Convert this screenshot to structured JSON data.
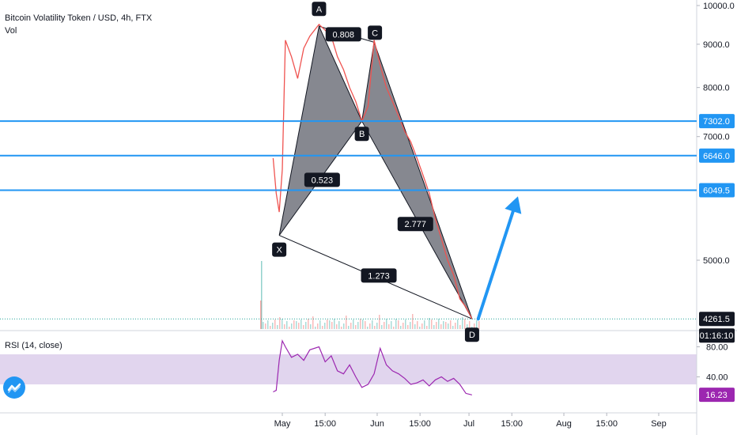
{
  "header": {
    "title": "Bitcoin Volatility Token / USD, 4h, FTX",
    "volume_label": "Vol",
    "rsi_label": "RSI (14, close)"
  },
  "chart_data": {
    "type": "line",
    "symbol": "Bitcoin Volatility Token / USD",
    "interval": "4h",
    "exchange": "FTX",
    "price_axis": {
      "min": 3800,
      "max": 10000,
      "ticks": [
        "10000.0",
        "9000.0",
        "8000.0",
        "7000.0",
        "5000.0"
      ]
    },
    "time_axis": {
      "ticks": [
        "May",
        "15:00",
        "Jun",
        "15:00",
        "Jul",
        "15:00",
        "Aug",
        "15:00",
        "Sep"
      ]
    },
    "price_series": {
      "name": "",
      "x": [
        "Apr 28",
        "Apr 29",
        "Apr 30",
        "May 1",
        "May 2",
        "May 4",
        "May 6",
        "May 8",
        "May 10",
        "May 13",
        "May 15",
        "May 17",
        "May 19",
        "May 21",
        "May 23",
        "May 25",
        "May 27",
        "May 29",
        "May 31",
        "Jun 2",
        "Jun 4",
        "Jun 6",
        "Jun 8",
        "Jun 10",
        "Jun 12",
        "Jun 14",
        "Jun 16",
        "Jun 18",
        "Jun 20",
        "Jun 22",
        "Jun 24",
        "Jun 26",
        "Jun 28",
        "Jun 30",
        "Jul 2"
      ],
      "values": [
        6600,
        6000,
        5700,
        6400,
        9100,
        8700,
        8200,
        8900,
        9200,
        9500,
        9350,
        9200,
        8700,
        8400,
        8000,
        7700,
        7300,
        7600,
        9100,
        8500,
        8000,
        7700,
        7400,
        7100,
        6900,
        6600,
        6300,
        6000,
        5600,
        5300,
        5000,
        4800,
        4500,
        4400,
        4262
      ]
    },
    "rsi_series": {
      "name": "",
      "x": [
        "Apr 28",
        "Apr 29",
        "Apr 30",
        "May 1",
        "May 2",
        "May 4",
        "May 6",
        "May 8",
        "May 10",
        "May 13",
        "May 15",
        "May 17",
        "May 19",
        "May 21",
        "May 23",
        "May 25",
        "May 27",
        "May 29",
        "May 31",
        "Jun 2",
        "Jun 4",
        "Jun 6",
        "Jun 8",
        "Jun 10",
        "Jun 12",
        "Jun 14",
        "Jun 16",
        "Jun 18",
        "Jun 20",
        "Jun 22",
        "Jun 24",
        "Jun 26",
        "Jun 28",
        "Jun 30",
        "Jul 2"
      ],
      "values": [
        20,
        22,
        62,
        88,
        80,
        66,
        70,
        62,
        76,
        80,
        60,
        68,
        48,
        44,
        56,
        40,
        26,
        30,
        44,
        78,
        56,
        48,
        44,
        38,
        30,
        32,
        36,
        28,
        36,
        40,
        34,
        38,
        30,
        18,
        16
      ]
    },
    "rsi_axis": {
      "min": 0,
      "max": 100,
      "ticks": [
        "80.00",
        "40.00"
      ],
      "band": [
        30,
        70
      ]
    },
    "horizontal_levels": [
      {
        "label": "7302.0",
        "value": 7302
      },
      {
        "label": "6646.0",
        "value": 6646
      },
      {
        "label": "6049.5",
        "value": 6049.5
      }
    ],
    "current_price": {
      "label": "4261.5",
      "value": 4261.5
    },
    "countdown": "01:16:10",
    "rsi_current": {
      "label": "16.23",
      "value": 16.23
    },
    "pattern": {
      "points": [
        {
          "label": "X",
          "date": "Apr 30",
          "price": 5350
        },
        {
          "label": "A",
          "date": "May 13",
          "price": 9450
        },
        {
          "label": "B",
          "date": "May 27",
          "price": 7300
        },
        {
          "label": "C",
          "date": "May 31",
          "price": 9050
        },
        {
          "label": "D",
          "date": "Jul 2",
          "price": 4262
        }
      ],
      "ratios": [
        {
          "label": "0.523",
          "between": "X-B"
        },
        {
          "label": "0.808",
          "between": "A-C"
        },
        {
          "label": "2.777",
          "between": "B-D"
        },
        {
          "label": "1.273",
          "between": "X-D"
        }
      ]
    },
    "projection_arrow": {
      "from_date": "Jul 4",
      "from_price": 4261.5,
      "to_date": "Jul 17",
      "to_price": 5950
    },
    "colors": {
      "level_line": "#2196f3",
      "pattern_fill": "#5d606b",
      "rsi_line": "#9c27b0",
      "rsi_band": "#e1d5ee",
      "badge_blue": "#2196f3",
      "badge_black": "#131722",
      "rsi_badge": "#9c27b0",
      "current_line": "#26a69a"
    }
  }
}
